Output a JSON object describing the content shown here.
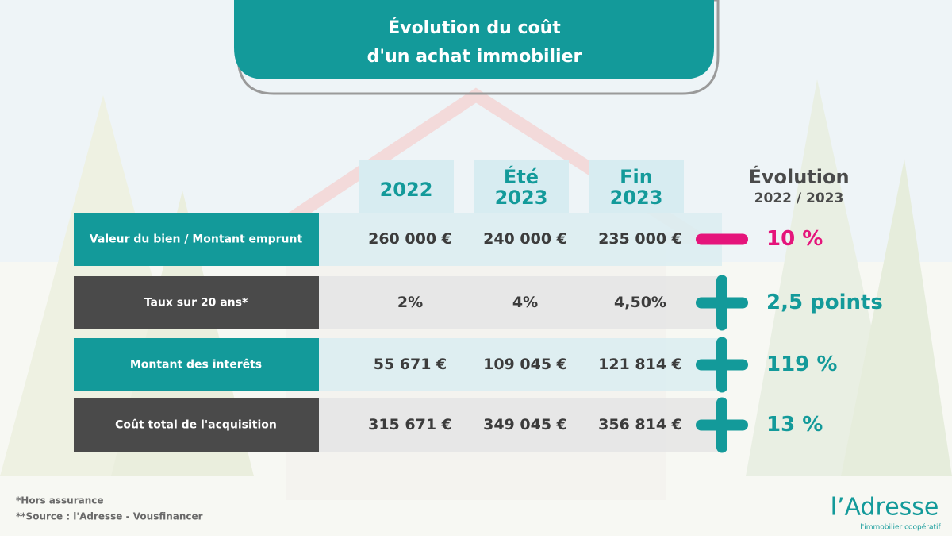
{
  "header": {
    "title": [
      "Évolution du coût",
      "d'un achat immobilier"
    ]
  },
  "table": {
    "columns": [
      [
        "2022"
      ],
      [
        "Été",
        "2023"
      ],
      [
        "Fin",
        "2023"
      ]
    ],
    "evolution_header": [
      "Évolution",
      "2022 / 2023"
    ],
    "rows": [
      {
        "label": "Valeur du bien / Montant emprunt",
        "style": "teal",
        "values": [
          "260 000 €",
          "240 000 €",
          "235 000 €"
        ],
        "sign": "minus",
        "evolution": "10 %"
      },
      {
        "label": "Taux sur 20 ans*",
        "style": "gray",
        "values": [
          "2%",
          "4%",
          "4,50%"
        ],
        "sign": "plus",
        "evolution": "2,5 points"
      },
      {
        "label": "Montant des interêts",
        "style": "teal",
        "values": [
          "55 671 €",
          "109 045 €",
          "121 814 €"
        ],
        "sign": "plus",
        "evolution": "119 %"
      },
      {
        "label": "Coût total de l'acquisition",
        "style": "gray",
        "values": [
          "315 671 €",
          "349 045 €",
          "356 814 €"
        ],
        "sign": "plus",
        "evolution": "13 %"
      }
    ]
  },
  "footnotes": [
    "*Hors assurance",
    "**Source : l'Adresse - Vousfinancer"
  ],
  "logo": {
    "name": "l’Adresse",
    "tagline": "l'immobilier coopératif"
  }
}
